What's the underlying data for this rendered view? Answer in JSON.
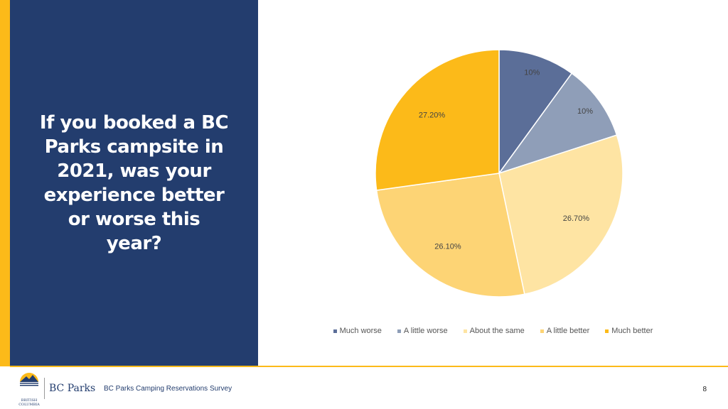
{
  "slide": {
    "title": "If you booked a BC Parks campsite in 2021, was your experience better or worse this year?",
    "page_number": "8"
  },
  "footer": {
    "logo_text": "BC Parks",
    "logo_subtext_1": "BRITISH",
    "logo_subtext_2": "COLUMBIA",
    "survey_name": "BC Parks Camping Reservations Survey"
  },
  "colors": {
    "navy": "#233D6E",
    "gold": "#FCBA19"
  },
  "chart_data": {
    "type": "pie",
    "title": "",
    "legend_position": "bottom",
    "slices": [
      {
        "label": "Much worse",
        "value": 10,
        "display": "10%",
        "color": "#5B6E98"
      },
      {
        "label": "A little worse",
        "value": 10,
        "display": "10%",
        "color": "#8F9EB8"
      },
      {
        "label": "About the same",
        "value": 26.7,
        "display": "26.70%",
        "color": "#FEE4A3"
      },
      {
        "label": "A little better",
        "value": 26.1,
        "display": "26.10%",
        "color": "#FDD475"
      },
      {
        "label": "Much better",
        "value": 27.2,
        "display": "27.20%",
        "color": "#FCBA19"
      }
    ]
  }
}
